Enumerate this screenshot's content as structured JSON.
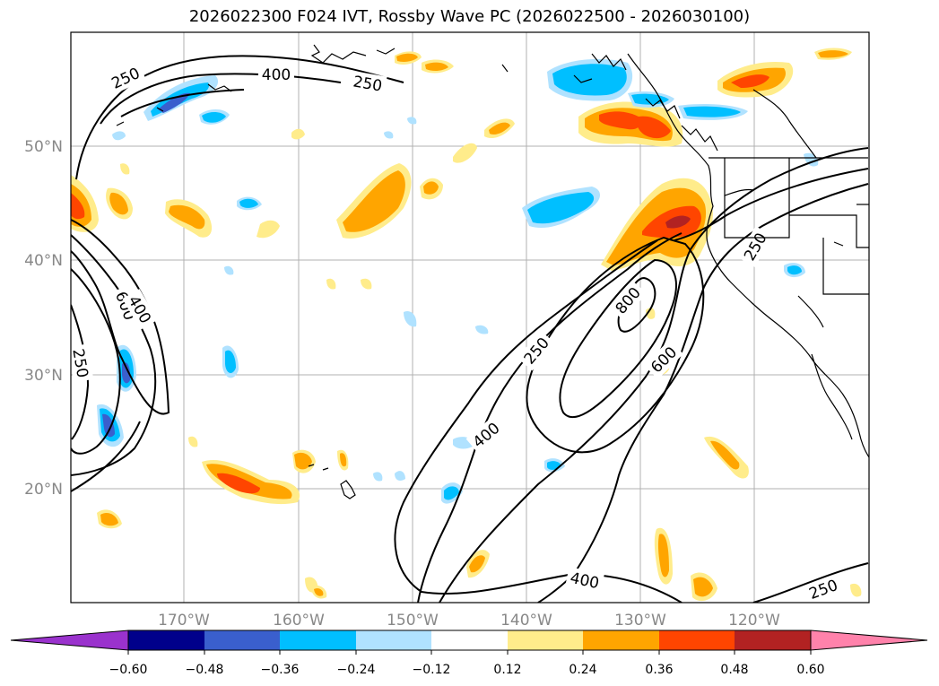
{
  "title": "2026022300 F024 IVT, Rossby Wave PC (2026022500 - 2026030100)",
  "colors": {
    "neg_060": "#9a32cd",
    "neg_048": "#00008b",
    "neg_036": "#3a5fcd",
    "neg_024": "#00bfff",
    "neg_012": "#b0e2ff",
    "zero": "#ffffff",
    "pos_012": "#ffec8b",
    "pos_024": "#ffa500",
    "pos_036": "#ff4500",
    "pos_048": "#b22222",
    "pos_060": "#ff82ab"
  },
  "map": {
    "lat_labels": [
      "50°N",
      "40°N",
      "30°N",
      "20°N"
    ],
    "lon_labels": [
      "170°W",
      "160°W",
      "150°W",
      "140°W",
      "130°W",
      "120°W"
    ],
    "contour_labels": [
      "250",
      "400",
      "250",
      "600",
      "400",
      "250",
      "400",
      "250",
      "800",
      "600",
      "250",
      "400",
      "250"
    ]
  },
  "colorbar": {
    "levels": [
      "−0.60",
      "−0.48",
      "−0.36",
      "−0.24",
      "−0.12",
      "0.12",
      "0.24",
      "0.36",
      "0.48",
      "0.60"
    ],
    "colors": [
      "#9a32cd",
      "#00008b",
      "#3a5fcd",
      "#00bfff",
      "#b0e2ff",
      "#ffffff",
      "#ffec8b",
      "#ffa500",
      "#ff4500",
      "#b22222",
      "#ff82ab"
    ]
  }
}
